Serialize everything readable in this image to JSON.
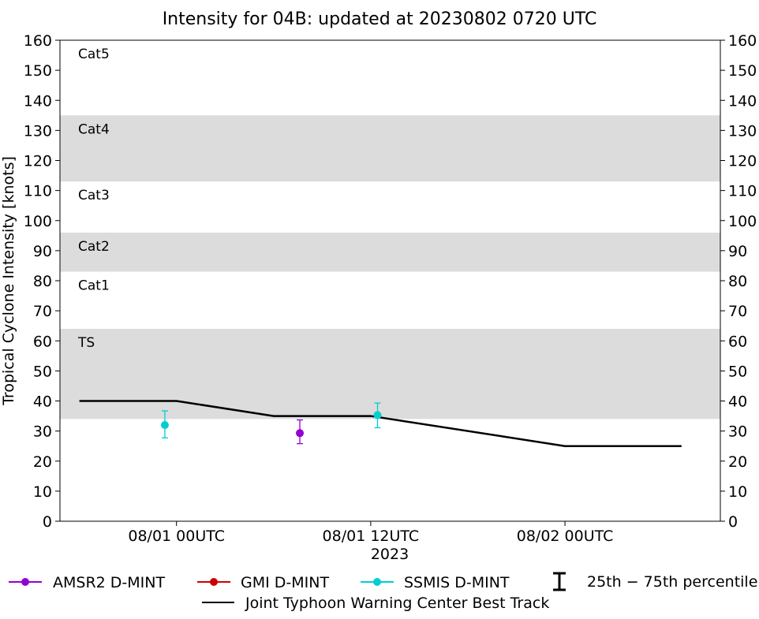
{
  "chart_data": {
    "type": "line",
    "title": "Intensity for 04B: updated at 20230802 0720 UTC",
    "ylabel": "Tropical Cyclone Intensity [knots]",
    "xlabel": "2023",
    "ylim": [
      0,
      160
    ],
    "yticks": [
      0,
      10,
      20,
      30,
      40,
      50,
      60,
      70,
      80,
      90,
      100,
      110,
      120,
      130,
      140,
      150,
      160
    ],
    "xlim_hours": [
      -12,
      56
    ],
    "xticks": [
      {
        "hour": 0,
        "label": "08/01 00UTC"
      },
      {
        "hour": 20,
        "label": "08/01 12UTC"
      },
      {
        "hour": 40,
        "label": "08/02 00UTC"
      }
    ],
    "category_bands": [
      {
        "name": "TS",
        "min": 34,
        "max": 64,
        "shaded": true
      },
      {
        "name": "Cat1",
        "min": 64,
        "max": 83,
        "shaded": false
      },
      {
        "name": "Cat2",
        "min": 83,
        "max": 96,
        "shaded": true
      },
      {
        "name": "Cat3",
        "min": 96,
        "max": 113,
        "shaded": false
      },
      {
        "name": "Cat4",
        "min": 113,
        "max": 135,
        "shaded": true
      },
      {
        "name": "Cat5",
        "min": 135,
        "max": 160,
        "shaded": false
      }
    ],
    "band_color": "#dcdcdc",
    "best_track": {
      "name": "Joint Typhoon Warning Center Best Track",
      "color": "#000000",
      "x": [
        -10,
        0,
        10,
        20,
        40,
        52
      ],
      "y": [
        40,
        40,
        35,
        35,
        25,
        25
      ]
    },
    "series": [
      {
        "name": "AMSR2 D-MINT",
        "color": "#9400d3",
        "points": [
          {
            "x": 12.7,
            "y": 29.3,
            "low": 25.8,
            "high": 33.7
          }
        ]
      },
      {
        "name": "GMI D-MINT",
        "color": "#cc0000",
        "points": []
      },
      {
        "name": "SSMIS D-MINT",
        "color": "#00ced1",
        "points": [
          {
            "x": -1.2,
            "y": 32.0,
            "low": 27.7,
            "high": 36.7
          },
          {
            "x": 20.7,
            "y": 35.3,
            "low": 31.1,
            "high": 39.3
          }
        ]
      }
    ],
    "legend": {
      "placement": "bottom",
      "percentile_label": "25th − 75th percentile"
    }
  }
}
